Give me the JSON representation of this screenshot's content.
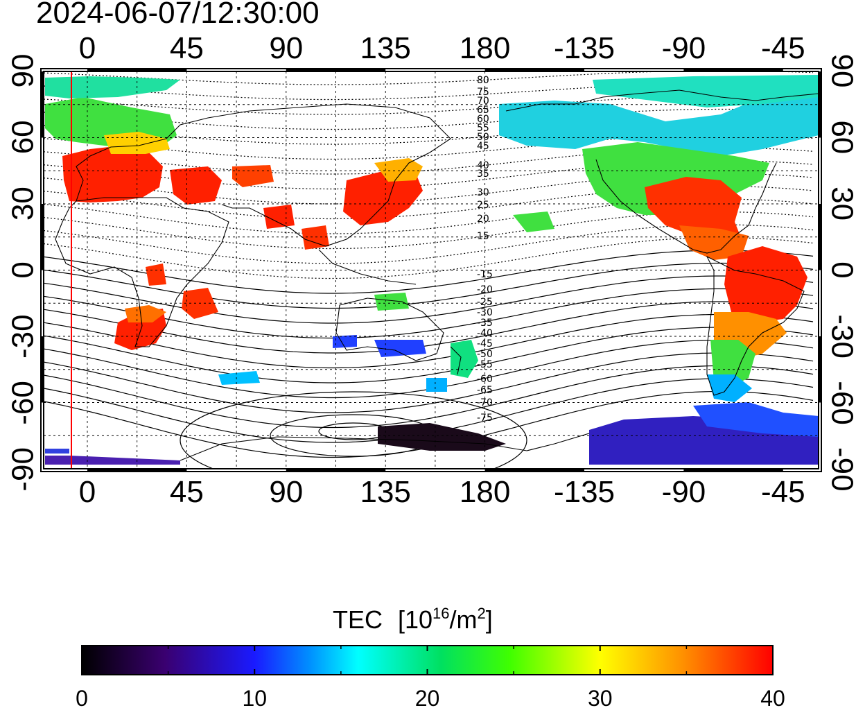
{
  "title": "2024-06-07/12:30:00",
  "map": {
    "top_lon_labels": [
      "0",
      "45",
      "90",
      "135",
      "180",
      "-135",
      "-90",
      "-45"
    ],
    "bottom_lon_labels": [
      "0",
      "45",
      "90",
      "135",
      "180",
      "-135",
      "-90",
      "-45"
    ],
    "left_lat_labels": [
      "90",
      "60",
      "30",
      "0",
      "-30",
      "-60",
      "-90"
    ],
    "right_lat_labels": [
      "90",
      "60",
      "30",
      "0",
      "-30",
      "-60",
      "-90"
    ],
    "magnetic_lat_labels": [
      "80",
      "75",
      "70",
      "65",
      "60",
      "55",
      "50",
      "45",
      "40",
      "35",
      "30",
      "25",
      "20",
      "15",
      "-15",
      "-20",
      "-25",
      "-30",
      "-35",
      "-40",
      "-45",
      "-50",
      "-55",
      "-60",
      "-65",
      "-70",
      "-75"
    ],
    "marker_line_color": "#ff0000"
  },
  "colorbar": {
    "title": "TEC",
    "unit_base": "[10",
    "unit_exp": "16",
    "unit_mid": "/m",
    "unit_exp2": "2",
    "unit_end": "]",
    "tick_labels": [
      "0",
      "10",
      "20",
      "30",
      "40"
    ],
    "range": [
      0,
      40
    ],
    "colors": [
      "#000000",
      "#3a0070",
      "#2020ff",
      "#00a0ff",
      "#00ffff",
      "#00e060",
      "#40ff00",
      "#ffff00",
      "#ff9000",
      "#ff0000"
    ]
  }
}
